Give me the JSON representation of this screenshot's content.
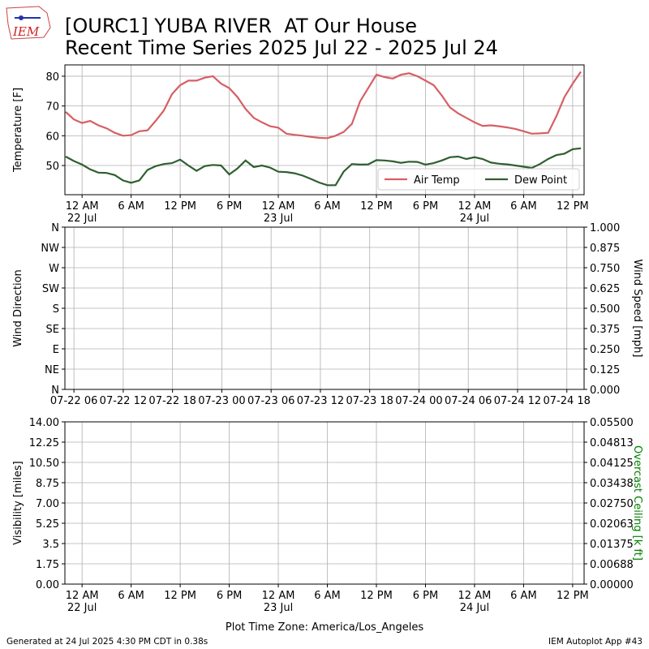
{
  "title": [
    "[OURC1] YUBA RIVER  AT Our House",
    "Recent Time Series 2025 Jul 22 - 2025 Jul 24"
  ],
  "logo": "IEM",
  "xlabel": "Plot Time Zone: America/Los_Angeles",
  "footer_left": "Generated at 24 Jul 2025 4:30 PM CDT in 0.38s",
  "footer_right": "IEM Autoplot App #43",
  "chart_data": [
    {
      "type": "line",
      "ylabel": "Temperature [F]",
      "grid": true,
      "legend": "lower right",
      "xlim": [
        -2.1,
        61.4
      ],
      "ylim": [
        40.2,
        83.8
      ],
      "yticks": [
        50,
        60,
        70,
        80
      ],
      "xticks": [
        {
          "value": 0,
          "label": "12 AM\n22 Jul"
        },
        {
          "value": 6,
          "label": "6 AM"
        },
        {
          "value": 12,
          "label": "12 PM"
        },
        {
          "value": 18,
          "label": "6 PM"
        },
        {
          "value": 24,
          "label": "12 AM\n23 Jul"
        },
        {
          "value": 30,
          "label": "6 AM"
        },
        {
          "value": 36,
          "label": "12 PM"
        },
        {
          "value": 42,
          "label": "6 PM"
        },
        {
          "value": 48,
          "label": "12 AM\n24 Jul"
        },
        {
          "value": 54,
          "label": "6 AM"
        },
        {
          "value": 60,
          "label": "12 PM"
        }
      ],
      "x": [
        -2,
        -1,
        0,
        1,
        2,
        3,
        4,
        5,
        6,
        7,
        8,
        9,
        10,
        11,
        12,
        13,
        14,
        15,
        16,
        17,
        18,
        19,
        20,
        21,
        22,
        23,
        24,
        25,
        26,
        27,
        28,
        29,
        30,
        31,
        32,
        33,
        34,
        35,
        36,
        37,
        38,
        39,
        40,
        41,
        42,
        43,
        44,
        45,
        46,
        47,
        48,
        49,
        50,
        51,
        52,
        53,
        54,
        55,
        56,
        57,
        58,
        59,
        60,
        61
      ],
      "series": [
        {
          "name": "Air Temp",
          "color": "#d65f64",
          "values": [
            68,
            65.5,
            64.3,
            65,
            63.5,
            62.5,
            61,
            60,
            60.2,
            61.5,
            61.8,
            65,
            68.5,
            74,
            77,
            78.5,
            78.5,
            79.5,
            80,
            77.5,
            76,
            73,
            69,
            66,
            64.5,
            63.2,
            62.7,
            60.7,
            60.3,
            60,
            59.6,
            59.3,
            59.2,
            60,
            61.3,
            64,
            71.5,
            76,
            80.5,
            79.7,
            79.2,
            80.5,
            81,
            80,
            78.5,
            77,
            73.5,
            69.5,
            67.5,
            66,
            64.5,
            63.3,
            63.5,
            63.2,
            62.8,
            62.3,
            61.5,
            60.7,
            60.8,
            61,
            66.5,
            73,
            77.5,
            81.5
          ]
        },
        {
          "name": "Dew Point",
          "color": "#2f5f30",
          "values": [
            53,
            51.5,
            50.3,
            48.7,
            47.6,
            47.5,
            46.8,
            45,
            44.2,
            45,
            48.5,
            49.8,
            50.5,
            50.8,
            52,
            50,
            48.2,
            49.8,
            50.2,
            50,
            47,
            49,
            51.7,
            49.5,
            50,
            49.3,
            47.9,
            47.8,
            47.4,
            46.6,
            45.5,
            44.3,
            43.4,
            43.4,
            48,
            50.5,
            50.3,
            50.4,
            51.8,
            51.7,
            51.4,
            50.9,
            51.3,
            51.2,
            50.3,
            50.8,
            51.7,
            52.8,
            53,
            52.2,
            52.8,
            52.2,
            51,
            50.6,
            50.4,
            50,
            49.6,
            49.2,
            50.5,
            52.2,
            53.5,
            54,
            55.5,
            55.8
          ]
        }
      ]
    },
    {
      "type": "line",
      "ylabel": "Wind Direction",
      "y2label": "Wind Speed [mph]",
      "grid": true,
      "xlim": [
        4.9,
        68.1
      ],
      "ylim": [
        0,
        360
      ],
      "y2lim": [
        0,
        1
      ],
      "yticks": [
        {
          "value": 0,
          "label": "N"
        },
        {
          "value": 45,
          "label": "NE"
        },
        {
          "value": 90,
          "label": "E"
        },
        {
          "value": 135,
          "label": "SE"
        },
        {
          "value": 180,
          "label": "S"
        },
        {
          "value": 225,
          "label": "SW"
        },
        {
          "value": 270,
          "label": "W"
        },
        {
          "value": 315,
          "label": "NW"
        },
        {
          "value": 360,
          "label": "N"
        }
      ],
      "y2ticks": [
        {
          "value": 0,
          "label": "0.000"
        },
        {
          "value": 0.125,
          "label": "0.125"
        },
        {
          "value": 0.25,
          "label": "0.250"
        },
        {
          "value": 0.375,
          "label": "0.375"
        },
        {
          "value": 0.5,
          "label": "0.500"
        },
        {
          "value": 0.625,
          "label": "0.625"
        },
        {
          "value": 0.75,
          "label": "0.750"
        },
        {
          "value": 0.875,
          "label": "0.875"
        },
        {
          "value": 1,
          "label": "1.000"
        }
      ],
      "xticks": [
        {
          "value": 6,
          "label": "07-22 06"
        },
        {
          "value": 12,
          "label": "07-22 12"
        },
        {
          "value": 18,
          "label": "07-22 18"
        },
        {
          "value": 24,
          "label": "07-23 00"
        },
        {
          "value": 30,
          "label": "07-23 06"
        },
        {
          "value": 36,
          "label": "07-23 12"
        },
        {
          "value": 42,
          "label": "07-23 18"
        },
        {
          "value": 48,
          "label": "07-24 00"
        },
        {
          "value": 54,
          "label": "07-24 06"
        },
        {
          "value": 60,
          "label": "07-24 12"
        },
        {
          "value": 66,
          "label": "07-24 18"
        }
      ]
    },
    {
      "type": "line",
      "ylabel": "Visibility [miles]",
      "y2label": "Overcast Ceiling [k ft]",
      "y2label_color": "#008000",
      "grid": true,
      "xlim": [
        -2.1,
        61.4
      ],
      "ylim": [
        0,
        14
      ],
      "y2lim": [
        0,
        0.055
      ],
      "yticks": [
        {
          "value": 0,
          "label": "0.00"
        },
        1.75,
        3.5,
        5.25,
        {
          "value": 7,
          "label": "7.00"
        },
        8.75,
        {
          "value": 10.5,
          "label": "10.50"
        },
        12.25,
        {
          "value": 14,
          "label": "14.00"
        }
      ],
      "y2ticks": [
        {
          "value": 0,
          "label": "0.00000"
        },
        {
          "value": 0.006875,
          "label": "0.00688"
        },
        {
          "value": 0.01375,
          "label": "0.01375"
        },
        {
          "value": 0.020625,
          "label": "0.02063"
        },
        {
          "value": 0.0275,
          "label": "0.02750"
        },
        {
          "value": 0.034375,
          "label": "0.03438"
        },
        {
          "value": 0.04125,
          "label": "0.04125"
        },
        {
          "value": 0.048125,
          "label": "0.04813"
        },
        {
          "value": 0.055,
          "label": "0.05500"
        }
      ],
      "xticks": [
        {
          "value": 0,
          "label": "12 AM\n22 Jul"
        },
        {
          "value": 6,
          "label": "6 AM"
        },
        {
          "value": 12,
          "label": "12 PM"
        },
        {
          "value": 18,
          "label": "6 PM"
        },
        {
          "value": 24,
          "label": "12 AM\n23 Jul"
        },
        {
          "value": 30,
          "label": "6 AM"
        },
        {
          "value": 36,
          "label": "12 PM"
        },
        {
          "value": 42,
          "label": "6 PM"
        },
        {
          "value": 48,
          "label": "12 AM\n24 Jul"
        },
        {
          "value": 54,
          "label": "6 AM"
        },
        {
          "value": 60,
          "label": "12 PM"
        }
      ]
    }
  ]
}
